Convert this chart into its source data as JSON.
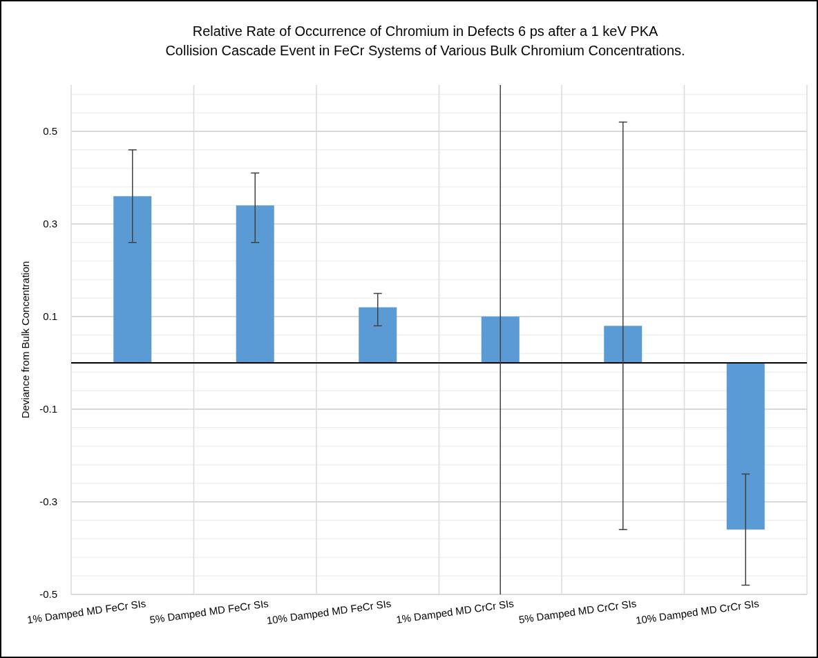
{
  "chart_data": {
    "type": "bar",
    "title": "Relative Rate of Occurrence of Chromium in Defects 6 ps after a 1 keV PKA\nCollision Cascade Event in FeCr Systems of Various Bulk Chromium Concentrations.",
    "ylabel": "Deviance from Bulk Concentration",
    "categories": [
      "1% Damped MD FeCr SIs",
      "5% Damped MD FeCr SIs",
      "10% Damped MD FeCr SIs",
      "1% Damped MD CrCr SIs",
      "5% Damped MD CrCr SIs",
      "10% Damped MD CrCr SIs"
    ],
    "values": [
      0.36,
      0.34,
      0.12,
      0.1,
      0.08,
      -0.36
    ],
    "errors": [
      [
        0.26,
        0.46
      ],
      [
        0.26,
        0.41
      ],
      [
        0.08,
        0.15
      ],
      [
        -0.5,
        0.6
      ],
      [
        -0.36,
        0.52
      ],
      [
        -0.48,
        -0.24
      ]
    ],
    "color": "#5b9bd5",
    "ylim": [
      -0.5,
      0.6
    ],
    "yticks": [
      -0.5,
      {
        "value": -0.46,
        "label": null
      },
      {
        "value": -0.42,
        "label": null
      },
      {
        "value": -0.38,
        "label": null
      },
      {
        "value": -0.34,
        "label": null
      },
      -0.3,
      {
        "value": -0.26,
        "label": null
      },
      {
        "value": -0.22,
        "label": null
      },
      {
        "value": -0.18,
        "label": null
      },
      {
        "value": -0.14,
        "label": null
      },
      -0.1,
      {
        "value": -0.06,
        "label": null
      },
      {
        "value": -0.02,
        "label": null
      },
      {
        "value": 0.02,
        "label": null
      },
      {
        "value": 0.06,
        "label": null
      },
      0.1,
      {
        "value": 0.14,
        "label": null
      },
      {
        "value": 0.18,
        "label": null
      },
      {
        "value": 0.22,
        "label": null
      },
      {
        "value": 0.26,
        "label": null
      },
      0.3,
      {
        "value": 0.34,
        "label": null
      },
      {
        "value": 0.38,
        "label": null
      },
      {
        "value": 0.42,
        "label": null
      },
      {
        "value": 0.46,
        "label": null
      },
      0.5,
      {
        "value": 0.54,
        "label": null
      },
      {
        "value": 0.58,
        "label": null
      }
    ],
    "ref_lines": [
      {
        "axis": "y",
        "value": 0,
        "color": "#000000"
      }
    ],
    "grid": true
  }
}
